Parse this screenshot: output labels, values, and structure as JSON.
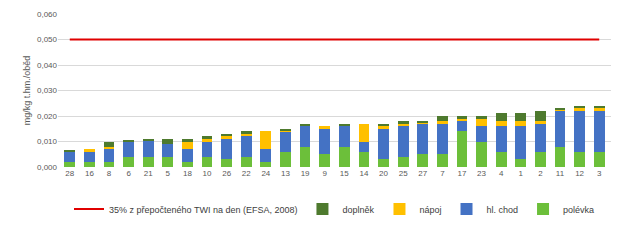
{
  "chart_data": {
    "type": "bar",
    "stacked": true,
    "y_label": "mg/kg t.hm./oběd",
    "categories": [
      "28",
      "16",
      "8",
      "6",
      "21",
      "5",
      "18",
      "10",
      "26",
      "22",
      "24",
      "13",
      "19",
      "9",
      "15",
      "14",
      "20",
      "25",
      "27",
      "7",
      "17",
      "23",
      "4",
      "1",
      "2",
      "11",
      "12",
      "3"
    ],
    "series": [
      {
        "name": "polévka",
        "color": "#6cbf3a",
        "values": [
          0.002,
          0.002,
          0.002,
          0.004,
          0.004,
          0.004,
          0.002,
          0.004,
          0.003,
          0.004,
          0.002,
          0.006,
          0.008,
          0.005,
          0.008,
          0.006,
          0.003,
          0.004,
          0.005,
          0.005,
          0.014,
          0.01,
          0.006,
          0.003,
          0.006,
          0.008,
          0.006,
          0.006
        ]
      },
      {
        "name": "hl. chod",
        "color": "#4472c4",
        "values": [
          0.004,
          0.004,
          0.005,
          0.006,
          0.0065,
          0.005,
          0.005,
          0.006,
          0.008,
          0.008,
          0.005,
          0.008,
          0.008,
          0.01,
          0.008,
          0.004,
          0.012,
          0.012,
          0.012,
          0.012,
          0.004,
          0.006,
          0.01,
          0.013,
          0.011,
          0.014,
          0.016,
          0.016
        ]
      },
      {
        "name": "nápoj",
        "color": "#ffc000",
        "values": [
          0,
          0.001,
          0.001,
          0,
          0,
          0,
          0.003,
          0.001,
          0.001,
          0.001,
          0.007,
          0.0005,
          0,
          0.001,
          0,
          0.007,
          0.001,
          0.001,
          0.0005,
          0.001,
          0.001,
          0.003,
          0.002,
          0.002,
          0.001,
          0.0005,
          0.001,
          0.001
        ]
      },
      {
        "name": "doplněk",
        "color": "#4e7a2e",
        "values": [
          0.0003,
          0,
          0.002,
          0.0005,
          0.0005,
          0.002,
          0.001,
          0.001,
          0.001,
          0.001,
          0,
          0.0005,
          0.001,
          0,
          0.001,
          0,
          0.001,
          0.001,
          0.0005,
          0.002,
          0.001,
          0.001,
          0.003,
          0.003,
          0.004,
          0.0005,
          0.001,
          0.001
        ]
      },
      {
        "name": "35% z přepočteného TWI na den (EFSA, 2008)",
        "color": "#e00000",
        "type": "line",
        "values": [
          0.05,
          0.05,
          0.05,
          0.05,
          0.05,
          0.05,
          0.05,
          0.05,
          0.05,
          0.05,
          0.05,
          0.05,
          0.05,
          0.05,
          0.05,
          0.05,
          0.05,
          0.05,
          0.05,
          0.05,
          0.05,
          0.05,
          0.05,
          0.05,
          0.05,
          0.05,
          0.05,
          0.05
        ]
      }
    ],
    "ylim": [
      0,
      0.06
    ],
    "yticks": [
      {
        "value": 0,
        "label": "0,000"
      },
      {
        "value": 0.01,
        "label": "0,010"
      },
      {
        "value": 0.02,
        "label": "0,020"
      },
      {
        "value": 0.03,
        "label": "0,030"
      },
      {
        "value": 0.04,
        "label": "0,040"
      },
      {
        "value": 0.05,
        "label": "0,050"
      },
      {
        "value": 0.06,
        "label": "0,060"
      }
    ],
    "grid": true,
    "legend": "bottom"
  }
}
